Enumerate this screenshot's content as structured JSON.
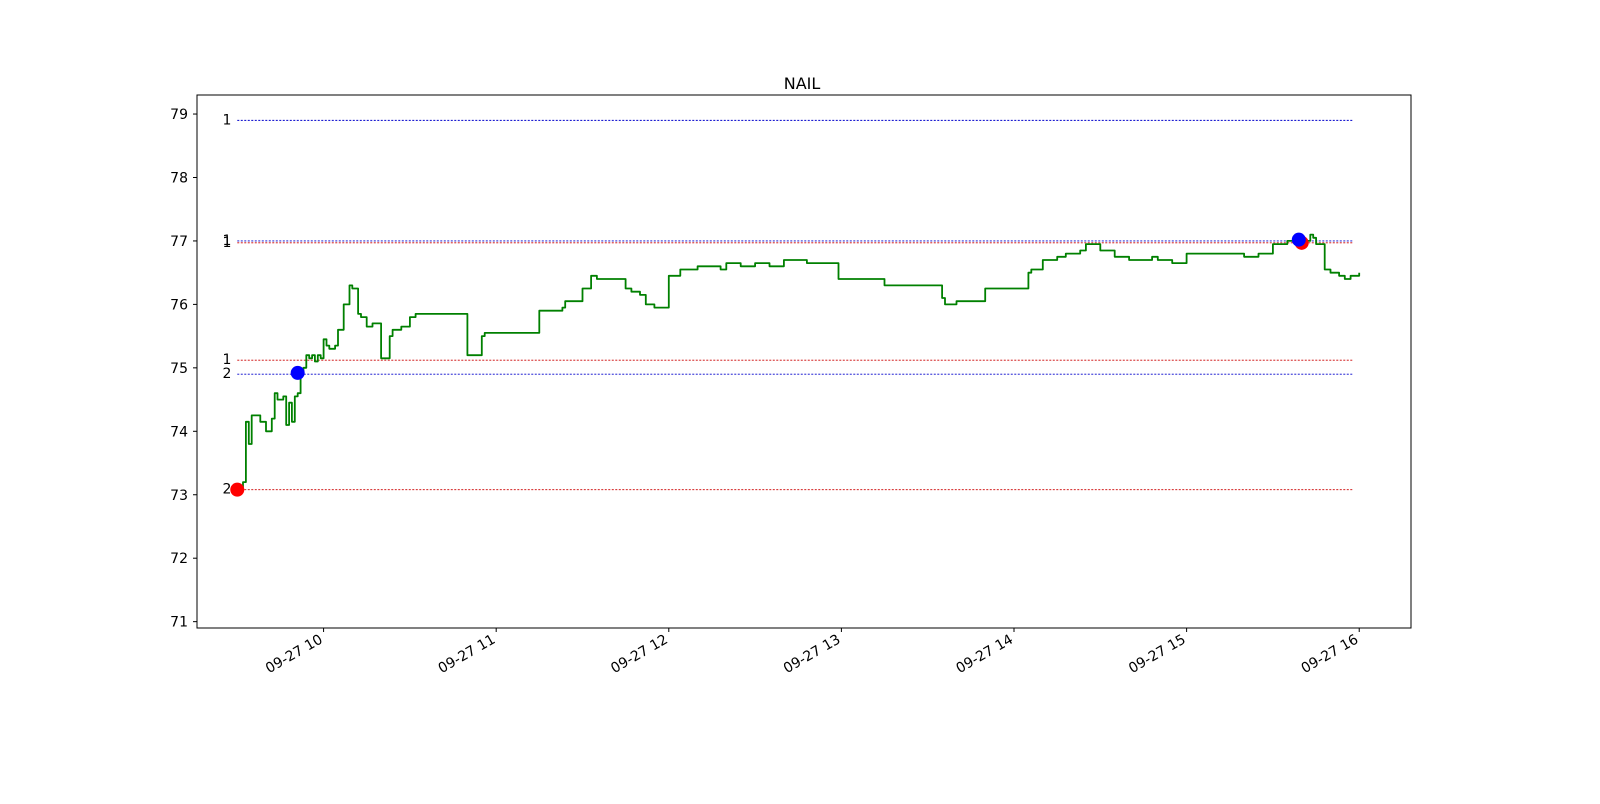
{
  "chart_data": {
    "type": "line",
    "title": "NAIL",
    "xlabel": "",
    "ylabel": "",
    "ylim": [
      70.9,
      79.3
    ],
    "yticks": [
      71,
      72,
      73,
      74,
      75,
      76,
      77,
      78,
      79
    ],
    "xlim": [
      "09-27 09:16",
      "09-27 16:18"
    ],
    "xticks": [
      {
        "time": "09-27 10:00",
        "label": "09-27 10"
      },
      {
        "time": "09-27 11:00",
        "label": "09-27 11"
      },
      {
        "time": "09-27 12:00",
        "label": "09-27 12"
      },
      {
        "time": "09-27 13:00",
        "label": "09-27 13"
      },
      {
        "time": "09-27 14:00",
        "label": "09-27 14"
      },
      {
        "time": "09-27 15:00",
        "label": "09-27 15"
      },
      {
        "time": "09-27 16:00",
        "label": "09-27 16"
      }
    ],
    "grid": false,
    "line_color": "#008000",
    "series": [
      {
        "x": [
          "09-27 09:30",
          "09-27 09:32",
          "09-27 09:33",
          "09-27 09:34",
          "09-27 09:35",
          "09-27 09:36",
          "09-27 09:38",
          "09-27 09:40",
          "09-27 09:42",
          "09-27 09:43",
          "09-27 09:44",
          "09-27 09:46",
          "09-27 09:47",
          "09-27 09:48",
          "09-27 09:49",
          "09-27 09:50",
          "09-27 09:51",
          "09-27 09:52",
          "09-27 09:53",
          "09-27 09:54",
          "09-27 09:55",
          "09-27 09:56",
          "09-27 09:57",
          "09-27 09:58",
          "09-27 09:59",
          "09-27 10:00",
          "09-27 10:01",
          "09-27 10:02",
          "09-27 10:04",
          "09-27 10:05",
          "09-27 10:07",
          "09-27 10:09",
          "09-27 10:10",
          "09-27 10:12",
          "09-27 10:13",
          "09-27 10:14",
          "09-27 10:15",
          "09-27 10:17",
          "09-27 10:20",
          "09-27 10:23",
          "09-27 10:24",
          "09-27 10:27",
          "09-27 10:28",
          "09-27 10:30",
          "09-27 10:32",
          "09-27 10:35",
          "09-27 10:38",
          "09-27 10:50",
          "09-27 10:51",
          "09-27 10:55",
          "09-27 10:56",
          "09-27 11:00",
          "09-27 11:14",
          "09-27 11:15",
          "09-27 11:23",
          "09-27 11:24",
          "09-27 11:30",
          "09-27 11:33",
          "09-27 11:35",
          "09-27 11:40",
          "09-27 11:45",
          "09-27 11:47",
          "09-27 11:50",
          "09-27 11:52",
          "09-27 11:55",
          "09-27 11:58",
          "09-27 12:00",
          "09-27 12:03",
          "09-27 12:04",
          "09-27 12:10",
          "09-27 12:15",
          "09-27 12:18",
          "09-27 12:20",
          "09-27 12:25",
          "09-27 12:30",
          "09-27 12:35",
          "09-27 12:38",
          "09-27 12:40",
          "09-27 12:48",
          "09-27 12:50",
          "09-27 12:58",
          "09-27 12:59",
          "09-27 13:10",
          "09-27 13:15",
          "09-27 13:30",
          "09-27 13:35",
          "09-27 13:36",
          "09-27 13:40",
          "09-27 13:45",
          "09-27 13:50",
          "09-27 14:05",
          "09-27 14:06",
          "09-27 14:10",
          "09-27 14:15",
          "09-27 14:18",
          "09-27 14:20",
          "09-27 14:23",
          "09-27 14:25",
          "09-27 14:30",
          "09-27 14:35",
          "09-27 14:40",
          "09-27 14:45",
          "09-27 14:48",
          "09-27 14:50",
          "09-27 14:55",
          "09-27 15:00",
          "09-27 15:15",
          "09-27 15:20",
          "09-27 15:25",
          "09-27 15:30",
          "09-27 15:35",
          "09-27 15:40",
          "09-27 15:43",
          "09-27 15:44",
          "09-27 15:45",
          "09-27 15:48",
          "09-27 15:50",
          "09-27 15:53",
          "09-27 15:55",
          "09-27 15:57",
          "09-27 15:59",
          "09-27 16:00"
        ],
        "y": [
          73.1,
          73.2,
          74.15,
          73.8,
          74.25,
          74.25,
          74.15,
          74.0,
          74.2,
          74.6,
          74.5,
          74.55,
          74.1,
          74.45,
          74.15,
          74.55,
          74.6,
          74.95,
          75.0,
          75.2,
          75.15,
          75.2,
          75.1,
          75.2,
          75.15,
          75.45,
          75.35,
          75.3,
          75.35,
          75.6,
          76.0,
          76.3,
          76.25,
          75.85,
          75.8,
          75.8,
          75.65,
          75.7,
          75.15,
          75.5,
          75.6,
          75.65,
          75.65,
          75.8,
          75.85,
          75.85,
          75.85,
          75.2,
          75.2,
          75.5,
          75.55,
          75.55,
          75.55,
          75.9,
          75.95,
          76.05,
          76.25,
          76.45,
          76.4,
          76.4,
          76.25,
          76.2,
          76.15,
          76.0,
          75.95,
          75.95,
          76.45,
          76.45,
          76.55,
          76.6,
          76.6,
          76.55,
          76.65,
          76.6,
          76.65,
          76.6,
          76.6,
          76.7,
          76.65,
          76.65,
          76.65,
          76.4,
          76.4,
          76.3,
          76.3,
          76.1,
          76.0,
          76.05,
          76.05,
          76.25,
          76.5,
          76.55,
          76.7,
          76.75,
          76.8,
          76.8,
          76.85,
          76.95,
          76.85,
          76.75,
          76.7,
          76.7,
          76.75,
          76.7,
          76.65,
          76.8,
          76.8,
          76.75,
          76.8,
          76.95,
          77.0,
          77.0,
          77.1,
          77.05,
          76.95,
          76.55,
          76.5,
          76.45,
          76.4,
          76.45,
          76.45,
          76.5
        ]
      }
    ],
    "levels": [
      {
        "label": "1",
        "value": 78.9,
        "color": "#0000cc"
      },
      {
        "label": "1",
        "value": 77.0,
        "color": "#0000cc"
      },
      {
        "label": "1",
        "value": 76.97,
        "color": "#cc0000"
      },
      {
        "label": "1",
        "value": 75.12,
        "color": "#cc0000"
      },
      {
        "label": "2",
        "value": 74.9,
        "color": "#0000cc"
      },
      {
        "label": "2",
        "value": 73.08,
        "color": "#cc0000"
      }
    ],
    "markers": [
      {
        "time": "09-27 09:30",
        "value": 73.08,
        "color": "#ff0000"
      },
      {
        "time": "09-27 09:51",
        "value": 74.92,
        "color": "#0000ff"
      },
      {
        "time": "09-27 15:40",
        "value": 76.97,
        "color": "#ff0000"
      },
      {
        "time": "09-27 15:39",
        "value": 77.02,
        "color": "#0000ff"
      }
    ]
  }
}
